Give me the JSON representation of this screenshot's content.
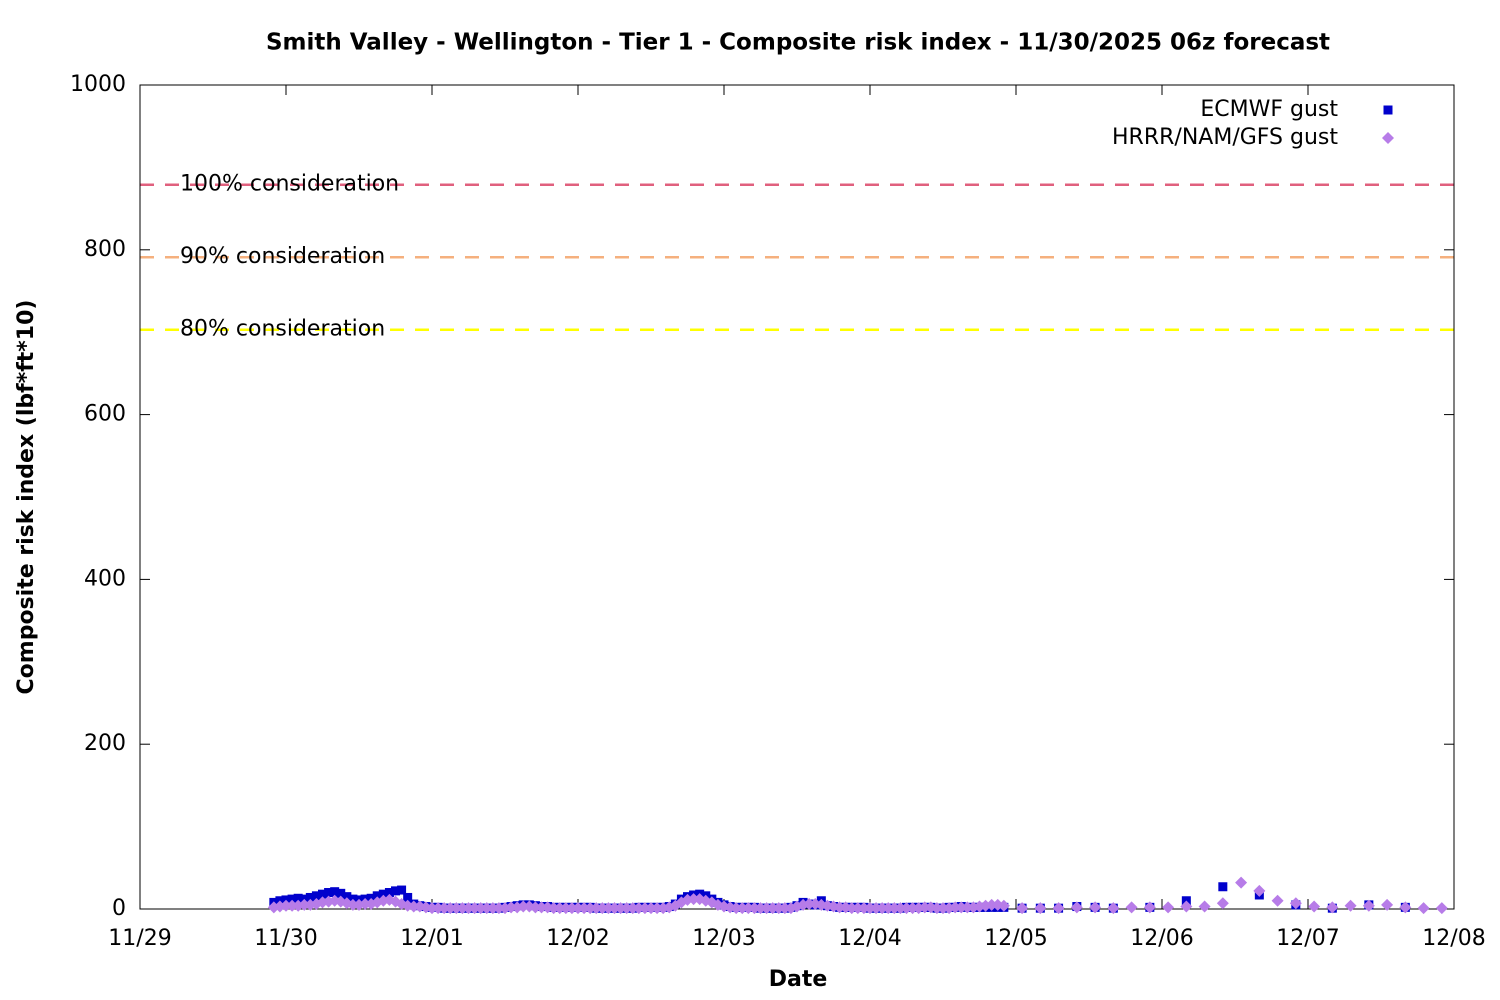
{
  "chart_data": {
    "type": "scatter",
    "title": "Smith Valley - Wellington - Tier 1 - Composite risk index - 11/30/2025 06z forecast",
    "x_label": "Date",
    "y_label": "Composite risk index (lbf*ft*10)",
    "xlim": [
      "2025-11-29T00:00",
      "2025-12-08T00:00"
    ],
    "xticks": [
      {
        "value": "2025-11-29T00:00",
        "label": "11/29"
      },
      {
        "value": "2025-11-30T00:00",
        "label": "11/30"
      },
      {
        "value": "2025-12-01T00:00",
        "label": "12/01"
      },
      {
        "value": "2025-12-02T00:00",
        "label": "12/02"
      },
      {
        "value": "2025-12-03T00:00",
        "label": "12/03"
      },
      {
        "value": "2025-12-04T00:00",
        "label": "12/04"
      },
      {
        "value": "2025-12-05T00:00",
        "label": "12/05"
      },
      {
        "value": "2025-12-06T00:00",
        "label": "12/06"
      },
      {
        "value": "2025-12-07T00:00",
        "label": "12/07"
      },
      {
        "value": "2025-12-08T00:00",
        "label": "12/08"
      }
    ],
    "ylim": [
      0,
      1000
    ],
    "yticks": [
      0,
      200,
      400,
      600,
      800,
      1000
    ],
    "legend": "upper right",
    "reference_lines": [
      {
        "label": "100% consideration",
        "value": 879,
        "color": "#e0607e"
      },
      {
        "label": "90% consideration",
        "value": 791,
        "color": "#f5b07e"
      },
      {
        "label": "80% consideration",
        "value": 703,
        "color": "#ffff00"
      }
    ],
    "x": [
      "2025-11-29T22:00",
      "2025-11-29T23:00",
      "2025-11-30T00:00",
      "2025-11-30T01:00",
      "2025-11-30T02:00",
      "2025-11-30T03:00",
      "2025-11-30T04:00",
      "2025-11-30T05:00",
      "2025-11-30T06:00",
      "2025-11-30T07:00",
      "2025-11-30T08:00",
      "2025-11-30T09:00",
      "2025-11-30T10:00",
      "2025-11-30T11:00",
      "2025-11-30T12:00",
      "2025-11-30T13:00",
      "2025-11-30T14:00",
      "2025-11-30T15:00",
      "2025-11-30T16:00",
      "2025-11-30T17:00",
      "2025-11-30T18:00",
      "2025-11-30T19:00",
      "2025-11-30T20:00",
      "2025-11-30T21:00",
      "2025-11-30T22:00",
      "2025-11-30T23:00",
      "2025-12-01T00:00",
      "2025-12-01T01:00",
      "2025-12-01T02:00",
      "2025-12-01T03:00",
      "2025-12-01T04:00",
      "2025-12-01T05:00",
      "2025-12-01T06:00",
      "2025-12-01T07:00",
      "2025-12-01T08:00",
      "2025-12-01T09:00",
      "2025-12-01T10:00",
      "2025-12-01T11:00",
      "2025-12-01T12:00",
      "2025-12-01T13:00",
      "2025-12-01T14:00",
      "2025-12-01T15:00",
      "2025-12-01T16:00",
      "2025-12-01T17:00",
      "2025-12-01T18:00",
      "2025-12-01T19:00",
      "2025-12-01T20:00",
      "2025-12-01T21:00",
      "2025-12-01T22:00",
      "2025-12-01T23:00",
      "2025-12-02T00:00",
      "2025-12-02T01:00",
      "2025-12-02T02:00",
      "2025-12-02T03:00",
      "2025-12-02T04:00",
      "2025-12-02T05:00",
      "2025-12-02T06:00",
      "2025-12-02T07:00",
      "2025-12-02T08:00",
      "2025-12-02T09:00",
      "2025-12-02T10:00",
      "2025-12-02T11:00",
      "2025-12-02T12:00",
      "2025-12-02T13:00",
      "2025-12-02T14:00",
      "2025-12-02T15:00",
      "2025-12-02T16:00",
      "2025-12-02T17:00",
      "2025-12-02T18:00",
      "2025-12-02T19:00",
      "2025-12-02T20:00",
      "2025-12-02T21:00",
      "2025-12-02T22:00",
      "2025-12-02T23:00",
      "2025-12-03T00:00",
      "2025-12-03T01:00",
      "2025-12-03T02:00",
      "2025-12-03T03:00",
      "2025-12-03T04:00",
      "2025-12-03T05:00",
      "2025-12-03T06:00",
      "2025-12-03T07:00",
      "2025-12-03T08:00",
      "2025-12-03T09:00",
      "2025-12-03T10:00",
      "2025-12-03T11:00",
      "2025-12-03T12:00",
      "2025-12-03T13:00",
      "2025-12-03T14:00",
      "2025-12-03T15:00",
      "2025-12-03T16:00",
      "2025-12-03T17:00",
      "2025-12-03T18:00",
      "2025-12-03T19:00",
      "2025-12-03T20:00",
      "2025-12-03T21:00",
      "2025-12-03T22:00",
      "2025-12-03T23:00",
      "2025-12-04T00:00",
      "2025-12-04T01:00",
      "2025-12-04T02:00",
      "2025-12-04T03:00",
      "2025-12-04T04:00",
      "2025-12-04T05:00",
      "2025-12-04T06:00",
      "2025-12-04T07:00",
      "2025-12-04T08:00",
      "2025-12-04T09:00",
      "2025-12-04T10:00",
      "2025-12-04T11:00",
      "2025-12-04T12:00",
      "2025-12-04T13:00",
      "2025-12-04T14:00",
      "2025-12-04T15:00",
      "2025-12-04T16:00",
      "2025-12-04T17:00",
      "2025-12-04T18:00",
      "2025-12-04T19:00",
      "2025-12-04T20:00",
      "2025-12-04T21:00",
      "2025-12-04T22:00",
      "2025-12-05T01:00",
      "2025-12-05T04:00",
      "2025-12-05T07:00",
      "2025-12-05T10:00",
      "2025-12-05T13:00",
      "2025-12-05T16:00",
      "2025-12-05T19:00",
      "2025-12-05T22:00",
      "2025-12-06T01:00",
      "2025-12-06T04:00",
      "2025-12-06T07:00",
      "2025-12-06T10:00",
      "2025-12-06T13:00",
      "2025-12-06T16:00",
      "2025-12-06T19:00",
      "2025-12-06T22:00",
      "2025-12-07T01:00",
      "2025-12-07T04:00",
      "2025-12-07T07:00",
      "2025-12-07T10:00",
      "2025-12-07T13:00",
      "2025-12-07T16:00",
      "2025-12-07T19:00",
      "2025-12-07T22:00"
    ],
    "series": [
      {
        "name": "ECMWF gust",
        "color": "#0000cc",
        "marker": "square",
        "values": [
          8,
          10,
          11,
          12,
          13,
          12,
          14,
          16,
          18,
          20,
          21,
          19,
          15,
          12,
          11,
          12,
          13,
          16,
          18,
          20,
          22,
          23,
          14,
          6,
          4,
          3,
          2,
          2,
          1,
          1,
          1,
          1,
          1,
          1,
          1,
          1,
          1,
          1,
          2,
          3,
          4,
          5,
          5,
          4,
          3,
          3,
          2,
          2,
          2,
          2,
          2,
          2,
          2,
          1,
          1,
          1,
          1,
          1,
          1,
          1,
          2,
          2,
          2,
          2,
          2,
          3,
          6,
          12,
          15,
          17,
          18,
          16,
          12,
          8,
          5,
          3,
          2,
          2,
          2,
          2,
          1,
          1,
          1,
          1,
          1,
          2,
          4,
          8,
          6,
          5,
          10,
          4,
          3,
          2,
          2,
          2,
          2,
          2,
          1,
          1,
          1,
          1,
          1,
          1,
          2,
          2,
          2,
          2,
          2,
          1,
          1,
          2,
          2,
          3,
          2,
          2,
          2,
          2,
          2,
          2,
          2,
          1,
          1,
          1,
          3,
          2,
          1,
          null,
          2,
          null,
          10,
          null,
          27,
          null,
          17,
          null,
          5,
          null,
          1,
          null,
          5,
          null,
          2,
          null,
          null
        ]
      },
      {
        "name": "HRRR/NAM/GFS gust",
        "color": "#b77ce8",
        "marker": "diamond",
        "values": [
          2,
          3,
          4,
          4,
          4,
          5,
          5,
          6,
          8,
          9,
          10,
          9,
          7,
          5,
          5,
          6,
          6,
          8,
          10,
          11,
          9,
          6,
          4,
          3,
          3,
          2,
          1,
          1,
          1,
          1,
          1,
          1,
          1,
          1,
          1,
          1,
          1,
          1,
          1,
          2,
          2,
          3,
          3,
          2,
          2,
          2,
          1,
          1,
          1,
          1,
          1,
          1,
          1,
          1,
          1,
          1,
          1,
          1,
          1,
          1,
          1,
          1,
          1,
          1,
          1,
          2,
          4,
          8,
          11,
          12,
          12,
          10,
          8,
          5,
          3,
          2,
          1,
          1,
          1,
          1,
          1,
          1,
          1,
          1,
          1,
          1,
          3,
          5,
          6,
          6,
          5,
          4,
          3,
          2,
          2,
          1,
          1,
          1,
          1,
          1,
          1,
          1,
          1,
          1,
          1,
          1,
          1,
          2,
          2,
          1,
          1,
          1,
          2,
          2,
          2,
          2,
          3,
          4,
          5,
          5,
          4,
          1,
          1,
          1,
          2,
          2,
          1,
          2,
          2,
          2,
          3,
          3,
          7,
          32,
          22,
          10,
          7,
          3,
          2,
          4,
          4,
          5,
          2,
          1,
          1
        ]
      }
    ]
  }
}
